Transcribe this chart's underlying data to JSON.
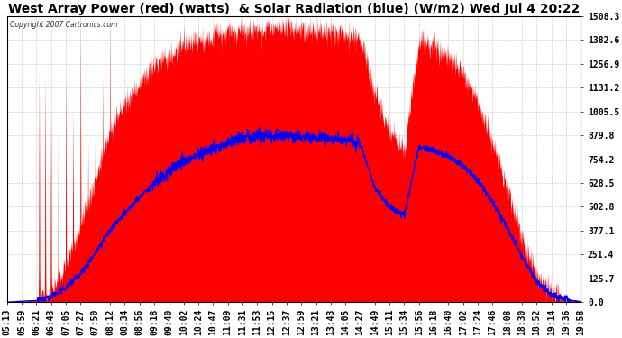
{
  "title": "West Array Power (red) (watts)  & Solar Radiation (blue) (W/m2) Wed Jul 4 20:22",
  "copyright": "Copyright 2007 Cartronics.com",
  "yticks": [
    0.0,
    125.7,
    251.4,
    377.1,
    502.8,
    628.5,
    754.2,
    879.8,
    1005.5,
    1131.2,
    1256.9,
    1382.6,
    1508.3
  ],
  "ymax": 1508.3,
  "ymin": 0.0,
  "xtick_labels": [
    "05:13",
    "05:59",
    "06:21",
    "06:43",
    "07:05",
    "07:27",
    "07:50",
    "08:12",
    "08:34",
    "08:56",
    "09:18",
    "09:40",
    "10:02",
    "10:24",
    "10:47",
    "11:09",
    "11:31",
    "11:53",
    "12:15",
    "12:37",
    "12:59",
    "13:21",
    "13:43",
    "14:05",
    "14:27",
    "14:49",
    "15:11",
    "15:34",
    "15:56",
    "16:18",
    "16:40",
    "17:02",
    "17:24",
    "17:46",
    "18:08",
    "18:30",
    "18:52",
    "19:14",
    "19:36",
    "19:58"
  ],
  "bg_color": "#ffffff",
  "plot_bg_color": "#ffffff",
  "grid_color": "#aaaaaa",
  "red_color": "#ff0000",
  "blue_color": "#0000ff",
  "title_fontsize": 10,
  "tick_fontsize": 7
}
